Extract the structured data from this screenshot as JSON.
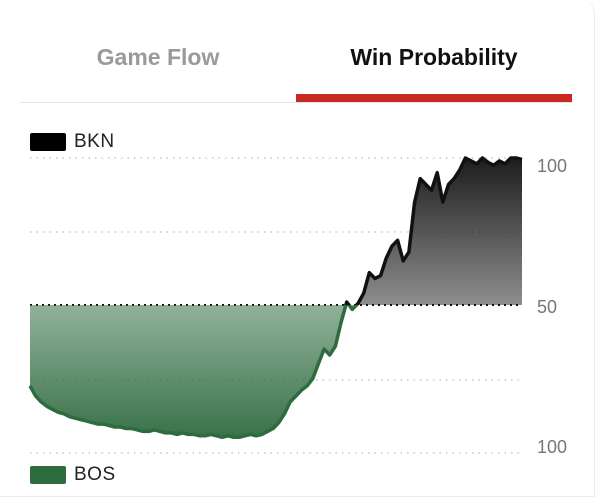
{
  "tabs": [
    {
      "label": "Game Flow",
      "active": false
    },
    {
      "label": "Win Probability",
      "active": true
    }
  ],
  "accent_color": "#c8281f",
  "legend": {
    "top": {
      "label": "BKN",
      "color": "#000000"
    },
    "bottom": {
      "label": "BOS",
      "color": "#2e6b3f"
    }
  },
  "axis": {
    "top_label": "100",
    "mid_label": "50",
    "bottom_label": "100"
  },
  "chart_data": {
    "type": "area",
    "ylim": [
      -100,
      100
    ],
    "series": [
      {
        "values": [
          -55,
          -62,
          -66,
          -69,
          -71,
          -73,
          -74,
          -76,
          -77,
          -78,
          -79,
          -80,
          -81,
          -81,
          -82,
          -83,
          -83,
          -84,
          -84,
          -85,
          -86,
          -86,
          -85,
          -86,
          -87,
          -87,
          -88,
          -87,
          -88,
          -88,
          -89,
          -89,
          -88,
          -89,
          -90,
          -89,
          -90,
          -90,
          -89,
          -88,
          -89,
          -88,
          -86,
          -84,
          -80,
          -74,
          -66,
          -62,
          -58,
          -55,
          -50,
          -40,
          -30,
          -34,
          -28,
          -12,
          2,
          -3,
          1,
          8,
          22,
          18,
          20,
          32,
          40,
          44,
          30,
          36,
          70,
          86,
          82,
          78,
          90,
          70,
          82,
          86,
          92,
          100,
          98,
          96,
          100,
          97,
          95,
          98,
          96,
          100,
          100,
          99
        ]
      }
    ],
    "grid": true
  }
}
